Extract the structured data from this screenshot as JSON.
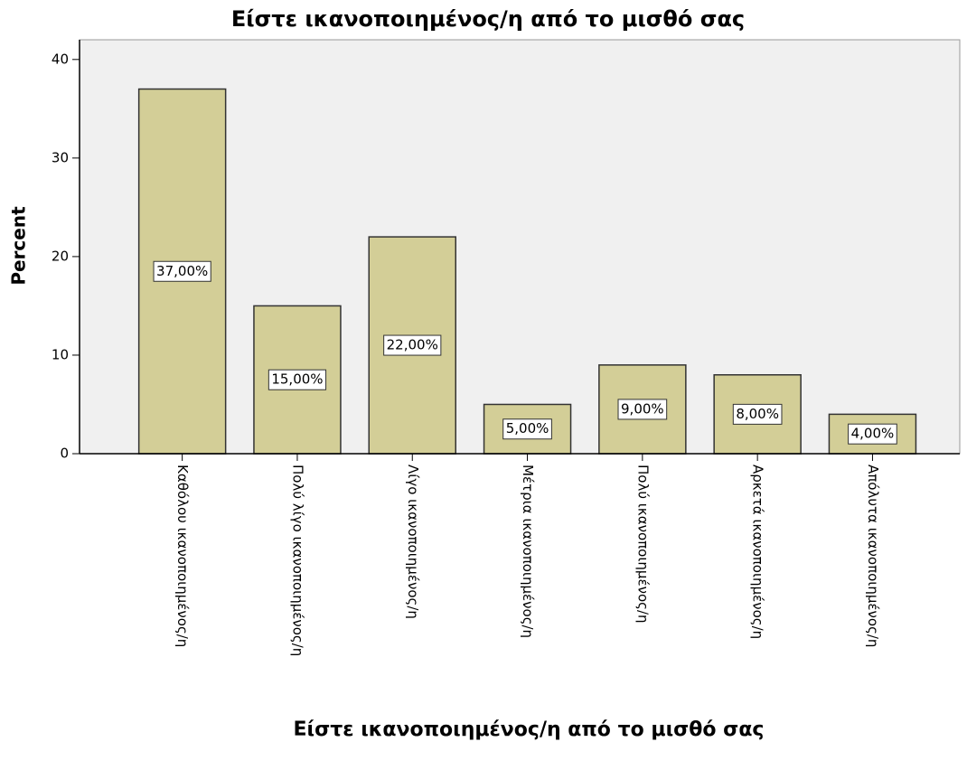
{
  "chart_data": {
    "type": "bar",
    "title": "Είστε ικανοποιημένος/η από το μισθό σας",
    "x_label": "Είστε ικανοποιημένος/η από το μισθό σας",
    "y_label": "Percent",
    "categories": [
      "Καθόλου ικανοποιημένος/η",
      "Πολύ λίγο ικανοποιημένος/η",
      "Λίγο ικανοποιημένος/η",
      "Μέτρια ικανοποιημένος/η",
      "Πολύ ικανοποιημένος/η",
      "Αρκετά ικανοποιημένος/η",
      "Απόλυτα ικανοποιημένος/η"
    ],
    "values": [
      37,
      15,
      22,
      5,
      9,
      8,
      4
    ],
    "value_labels": [
      "37,00%",
      "15,00%",
      "22,00%",
      "5,00%",
      "9,00%",
      "8,00%",
      "4,00%"
    ],
    "color": "#d3ce97",
    "ylim": [
      0,
      42
    ],
    "yticks": [
      0,
      10,
      20,
      30,
      40
    ],
    "grid": false
  }
}
